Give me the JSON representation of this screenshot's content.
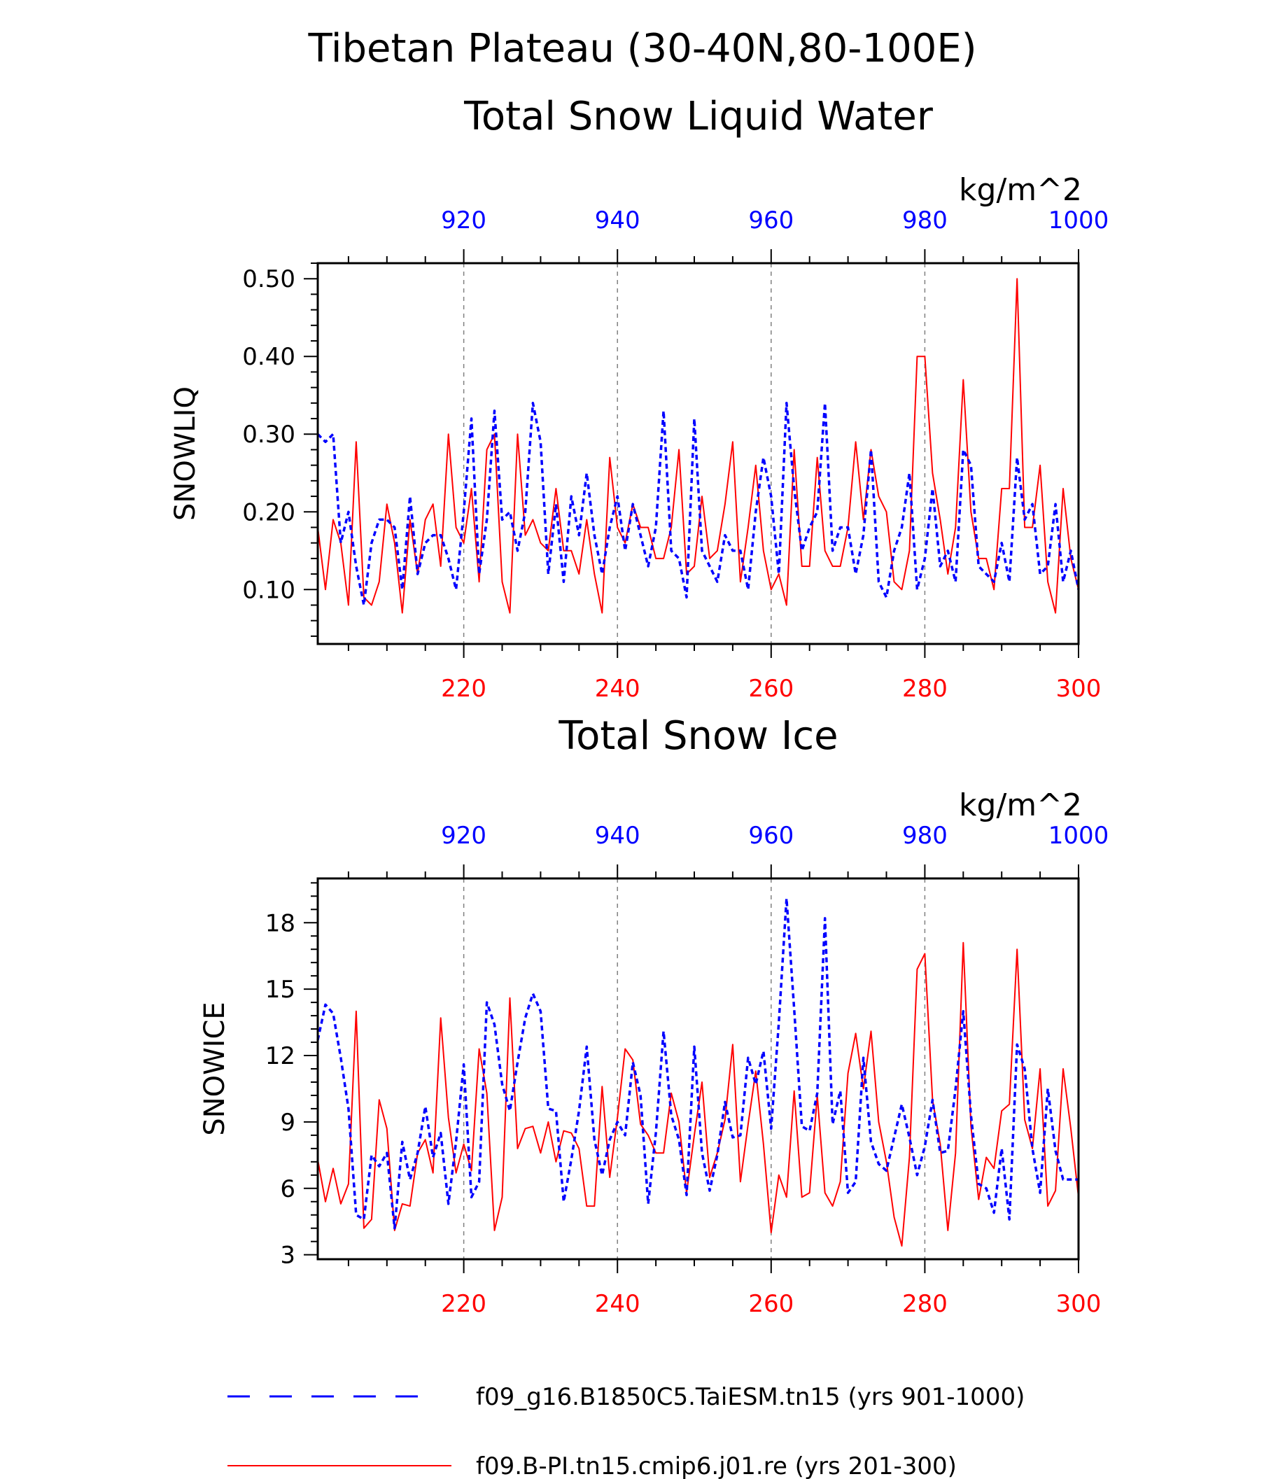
{
  "title": "Tibetan Plateau (30-40N,80-100E)",
  "colors": {
    "control": "#ff0000",
    "taiesm": "#0000ff",
    "grid": "#808080"
  },
  "legend": [
    {
      "label": "f09_g16.B1850C5.TaiESM.tn15 (yrs 901-1000)",
      "style": "dashed",
      "color": "#0000ff"
    },
    {
      "label": "f09.B-PI.tn15.cmip6.j01.re (yrs 201-300)",
      "style": "solid",
      "color": "#ff0000"
    }
  ],
  "chart_data": [
    {
      "type": "line",
      "title": "Total Snow Liquid Water",
      "units": "kg/m^2",
      "ylabel": "SNOWLIQ",
      "ylim": [
        0.03,
        0.52
      ],
      "yticks": [
        "0.10",
        "0.20",
        "0.30",
        "0.40",
        "0.50"
      ],
      "bottom_axis": {
        "xlim": [
          201,
          300
        ],
        "ticks": [
          "220",
          "240",
          "260",
          "280",
          "300"
        ],
        "color": "#ff0000"
      },
      "top_axis": {
        "xlim": [
          901,
          1000
        ],
        "ticks": [
          "920",
          "940",
          "960",
          "980",
          "1000"
        ],
        "color": "#0000ff"
      },
      "grid": "vertical dashed at major x ticks",
      "series": [
        {
          "name": "f09.B-PI.tn15.cmip6.j01.re (yrs 201-300)",
          "axis": "bottom",
          "color": "#ff0000",
          "style": "solid",
          "x_start": 201,
          "values": [
            0.18,
            0.1,
            0.19,
            0.16,
            0.08,
            0.29,
            0.09,
            0.08,
            0.11,
            0.21,
            0.16,
            0.07,
            0.19,
            0.12,
            0.19,
            0.21,
            0.13,
            0.3,
            0.18,
            0.16,
            0.23,
            0.11,
            0.28,
            0.3,
            0.11,
            0.07,
            0.3,
            0.17,
            0.19,
            0.16,
            0.15,
            0.23,
            0.15,
            0.15,
            0.12,
            0.19,
            0.12,
            0.07,
            0.27,
            0.18,
            0.16,
            0.21,
            0.18,
            0.18,
            0.14,
            0.14,
            0.18,
            0.28,
            0.12,
            0.13,
            0.22,
            0.14,
            0.15,
            0.21,
            0.29,
            0.11,
            0.18,
            0.26,
            0.15,
            0.1,
            0.12,
            0.08,
            0.28,
            0.13,
            0.13,
            0.27,
            0.15,
            0.13,
            0.13,
            0.18,
            0.29,
            0.19,
            0.28,
            0.22,
            0.2,
            0.11,
            0.1,
            0.15,
            0.4,
            0.4,
            0.25,
            0.19,
            0.12,
            0.18,
            0.37,
            0.2,
            0.14,
            0.14,
            0.1,
            0.23,
            0.23,
            0.5,
            0.18,
            0.18,
            0.26,
            0.11,
            0.07,
            0.23,
            0.14,
            0.1
          ]
        },
        {
          "name": "f09_g16.B1850C5.TaiESM.tn15 (yrs 901-1000)",
          "axis": "top",
          "color": "#0000ff",
          "style": "dashed",
          "x_start": 901,
          "values": [
            0.3,
            0.29,
            0.3,
            0.16,
            0.2,
            0.13,
            0.08,
            0.16,
            0.19,
            0.19,
            0.18,
            0.1,
            0.22,
            0.12,
            0.16,
            0.17,
            0.17,
            0.14,
            0.1,
            0.2,
            0.32,
            0.12,
            0.19,
            0.33,
            0.19,
            0.2,
            0.15,
            0.2,
            0.34,
            0.29,
            0.12,
            0.21,
            0.11,
            0.22,
            0.17,
            0.25,
            0.17,
            0.12,
            0.18,
            0.22,
            0.15,
            0.21,
            0.17,
            0.13,
            0.18,
            0.33,
            0.15,
            0.14,
            0.09,
            0.32,
            0.15,
            0.13,
            0.11,
            0.17,
            0.15,
            0.15,
            0.1,
            0.2,
            0.27,
            0.22,
            0.12,
            0.34,
            0.23,
            0.15,
            0.18,
            0.2,
            0.34,
            0.15,
            0.18,
            0.18,
            0.12,
            0.17,
            0.28,
            0.11,
            0.09,
            0.15,
            0.18,
            0.25,
            0.1,
            0.14,
            0.23,
            0.13,
            0.15,
            0.11,
            0.28,
            0.26,
            0.13,
            0.12,
            0.11,
            0.16,
            0.11,
            0.27,
            0.19,
            0.21,
            0.12,
            0.13,
            0.21,
            0.11,
            0.15,
            0.1
          ]
        }
      ]
    },
    {
      "type": "line",
      "title": "Total Snow Ice",
      "units": "kg/m^2",
      "ylabel": "SNOWICE",
      "ylim": [
        2.8,
        20.0
      ],
      "yticks": [
        "3",
        "6",
        "9",
        "12",
        "15",
        "18"
      ],
      "bottom_axis": {
        "xlim": [
          201,
          300
        ],
        "ticks": [
          "220",
          "240",
          "260",
          "280",
          "300"
        ],
        "color": "#ff0000"
      },
      "top_axis": {
        "xlim": [
          901,
          1000
        ],
        "ticks": [
          "920",
          "940",
          "960",
          "980",
          "1000"
        ],
        "color": "#0000ff"
      },
      "grid": "vertical dashed at major x ticks",
      "series": [
        {
          "name": "f09.B-PI.tn15.cmip6.j01.re (yrs 201-300)",
          "axis": "bottom",
          "color": "#ff0000",
          "style": "solid",
          "x_start": 201,
          "values": [
            7.3,
            5.4,
            6.9,
            5.3,
            6.2,
            14.0,
            4.2,
            4.6,
            10.0,
            8.7,
            4.1,
            5.3,
            5.2,
            7.6,
            8.2,
            6.7,
            13.7,
            9.2,
            6.7,
            8.0,
            6.8,
            12.3,
            10.3,
            4.1,
            5.6,
            14.6,
            7.8,
            8.7,
            8.8,
            7.6,
            9.0,
            7.2,
            8.6,
            8.5,
            7.8,
            5.2,
            5.2,
            10.6,
            6.5,
            9.2,
            12.3,
            11.8,
            8.9,
            8.4,
            7.6,
            7.6,
            10.3,
            9.0,
            5.8,
            8.4,
            10.8,
            6.5,
            7.6,
            9.1,
            12.5,
            6.3,
            8.9,
            11.3,
            8.0,
            4.0,
            6.6,
            5.6,
            10.4,
            5.6,
            5.8,
            10.2,
            5.8,
            5.2,
            6.3,
            11.2,
            13.0,
            10.5,
            13.1,
            9.0,
            7.2,
            4.7,
            3.4,
            7.4,
            15.9,
            16.6,
            10.0,
            8.0,
            4.1,
            7.6,
            17.1,
            8.8,
            5.5,
            7.4,
            6.9,
            9.5,
            9.8,
            16.8,
            9.1,
            7.8,
            11.4,
            5.2,
            5.9,
            11.4,
            8.7,
            5.6
          ]
        },
        {
          "name": "f09_g16.B1850C5.TaiESM.tn15 (yrs 901-1000)",
          "axis": "top",
          "color": "#0000ff",
          "style": "dashed",
          "x_start": 901,
          "values": [
            12.7,
            14.3,
            13.9,
            11.9,
            9.6,
            4.8,
            4.6,
            7.5,
            7.0,
            7.6,
            4.2,
            8.1,
            6.4,
            7.6,
            9.7,
            7.4,
            8.5,
            5.3,
            8.1,
            11.6,
            5.6,
            6.3,
            14.4,
            13.4,
            10.7,
            9.5,
            11.7,
            13.7,
            14.8,
            14.0,
            9.6,
            9.5,
            5.4,
            7.3,
            9.5,
            12.4,
            8.2,
            6.6,
            8.2,
            9.0,
            8.4,
            11.7,
            10.2,
            5.3,
            8.5,
            13.1,
            9.3,
            8.2,
            5.7,
            12.4,
            7.6,
            5.9,
            7.5,
            9.9,
            8.3,
            8.4,
            11.9,
            10.7,
            12.2,
            8.7,
            13.5,
            19.1,
            14.1,
            8.8,
            8.6,
            10.3,
            18.2,
            8.9,
            10.4,
            5.8,
            6.3,
            11.9,
            8.1,
            7.1,
            6.8,
            8.3,
            9.8,
            8.3,
            6.6,
            7.9,
            10.0,
            7.6,
            7.7,
            10.5,
            14.0,
            9.3,
            6.2,
            6.0,
            4.9,
            7.8,
            4.6,
            12.5,
            11.4,
            7.8,
            5.8,
            10.5,
            7.7,
            6.4,
            6.4,
            6.4
          ]
        }
      ]
    }
  ]
}
